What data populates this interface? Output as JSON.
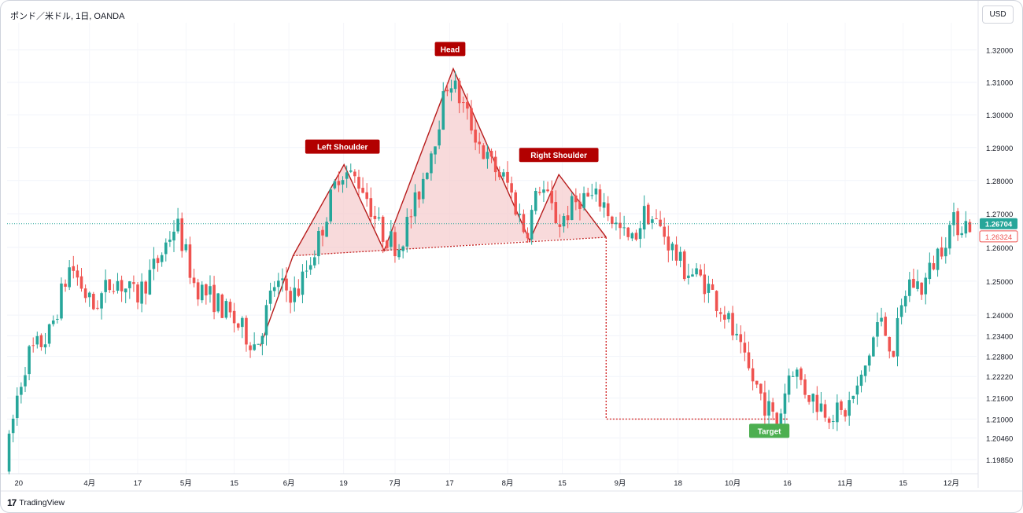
{
  "header": {
    "symbol_title": "ポンド／米ドル, 1日, OANDA",
    "currency_button": "USD"
  },
  "branding": {
    "logo_text": "TradingView",
    "logo_mark": "17"
  },
  "colors": {
    "up": "#26a69a",
    "down": "#ef5350",
    "pattern_fill": "#f5c6c8",
    "pattern_line": "#b71c1c",
    "label_bg": "#b20000",
    "target_bg": "#4caf50",
    "current_price_bg": "#26a69a"
  },
  "chart_data": {
    "type": "candlestick",
    "y_axis": {
      "min": 1.1945,
      "max": 1.3285,
      "scale": "log",
      "ticks": [
        "1.19850",
        "1.20460",
        "1.21000",
        "1.21600",
        "1.22220",
        "1.22800",
        "1.23400",
        "1.24000",
        "1.25000",
        "1.26000",
        "1.27000",
        "1.28000",
        "1.29000",
        "1.30000",
        "1.31000",
        "1.32000"
      ]
    },
    "x_axis": {
      "ticks": [
        "20",
        "4月",
        "17",
        "5月",
        "15",
        "6月",
        "19",
        "7月",
        "17",
        "8月",
        "15",
        "9月",
        "18",
        "10月",
        "16",
        "11月",
        "15",
        "12月"
      ]
    },
    "current_price": "1.26704",
    "reference_price": "1.26324",
    "annotations": [
      "Head",
      "Left Shoulder",
      "Right Shoulder",
      "Target"
    ],
    "pattern": {
      "name": "head-and-shoulders",
      "left_shoulder_peak": 1.2848,
      "head_peak": 1.3142,
      "right_shoulder_peak": 1.2818,
      "neckline_start": 1.257,
      "neckline_end": 1.263,
      "pattern_start": 1.231,
      "target": 1.21
    },
    "candle_days": 240,
    "start_price": 1.1955,
    "waypoints": [
      [
        0,
        1.1955
      ],
      [
        3,
        1.215
      ],
      [
        6,
        1.228
      ],
      [
        12,
        1.234
      ],
      [
        18,
        1.255
      ],
      [
        24,
        1.242
      ],
      [
        30,
        1.251
      ],
      [
        36,
        1.245
      ],
      [
        42,
        1.256
      ],
      [
        47,
        1.2675
      ],
      [
        52,
        1.249
      ],
      [
        58,
        1.244
      ],
      [
        64,
        1.237
      ],
      [
        69,
        1.231
      ],
      [
        74,
        1.249
      ],
      [
        80,
        1.246
      ],
      [
        86,
        1.262
      ],
      [
        92,
        1.2835
      ],
      [
        98,
        1.279
      ],
      [
        103,
        1.265
      ],
      [
        108,
        1.26
      ],
      [
        113,
        1.274
      ],
      [
        118,
        1.293
      ],
      [
        122,
        1.312
      ],
      [
        126,
        1.302
      ],
      [
        132,
        1.287
      ],
      [
        138,
        1.279
      ],
      [
        143,
        1.264
      ],
      [
        147,
        1.279
      ],
      [
        152,
        1.267
      ],
      [
        158,
        1.275
      ],
      [
        164,
        1.274
      ],
      [
        168,
        1.266
      ],
      [
        172,
        1.261
      ],
      [
        176,
        1.271
      ],
      [
        181,
        1.264
      ],
      [
        186,
        1.254
      ],
      [
        192,
        1.25
      ],
      [
        198,
        1.24
      ],
      [
        203,
        1.226
      ],
      [
        208,
        1.216
      ],
      [
        212,
        1.208
      ],
      [
        216,
        1.226
      ],
      [
        220,
        1.218
      ],
      [
        225,
        1.213
      ],
      [
        230,
        1.211
      ],
      [
        235,
        1.22
      ],
      [
        240,
        1.239
      ],
      [
        244,
        1.23
      ],
      [
        248,
        1.25
      ],
      [
        252,
        1.248
      ],
      [
        256,
        1.258
      ],
      [
        260,
        1.267
      ],
      [
        265,
        1.267
      ]
    ]
  }
}
